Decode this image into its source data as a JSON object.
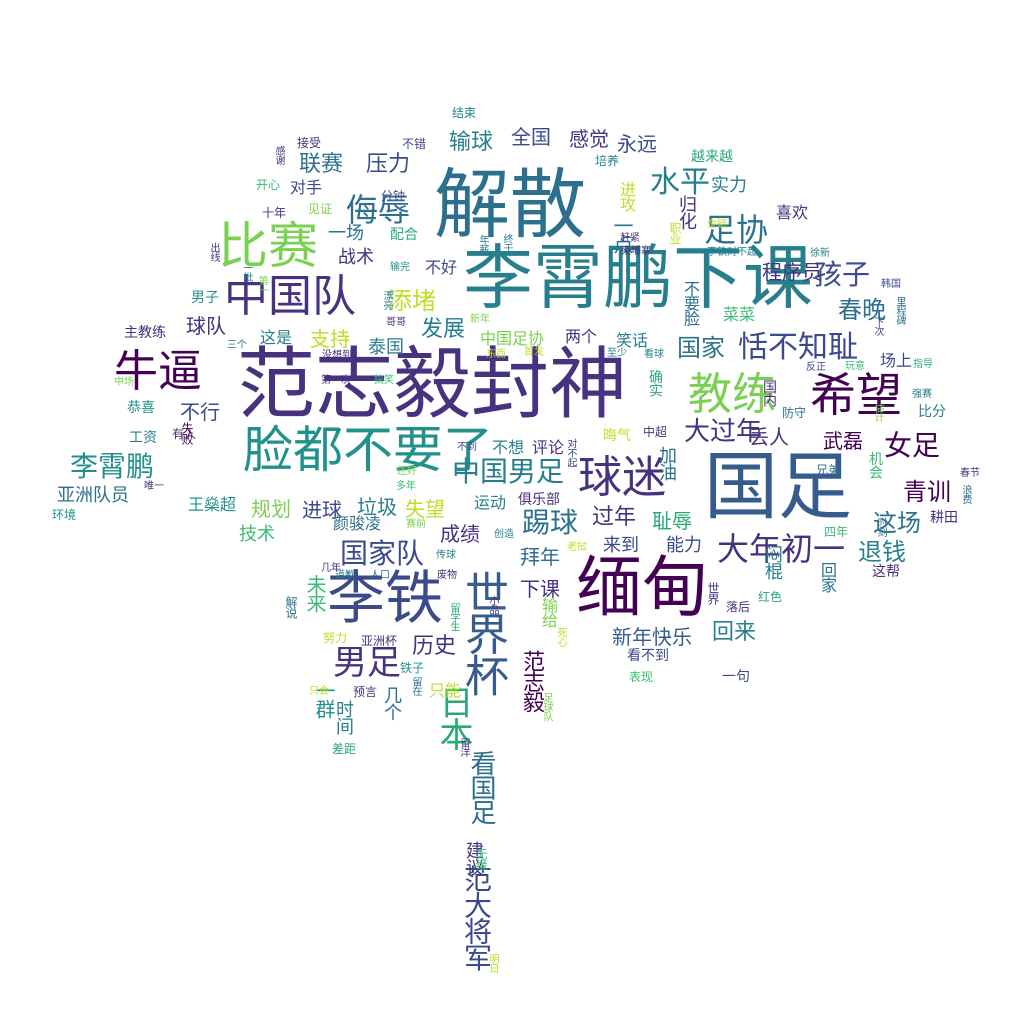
{
  "palette": {
    "indigo": "#46327e",
    "navy": "#3b4a8a",
    "blue": "#365c8d",
    "steel": "#2d708e",
    "teal": "#277f8e",
    "sea": "#21918c",
    "green": "#2aa876",
    "jade": "#3bbb75",
    "lime": "#7ad151",
    "yellow": "#bddf26",
    "purple": "#440154"
  },
  "words": [
    {
      "text": "范志毅封神"
    },
    {
      "text": "李霄鹏下课"
    },
    {
      "text": "解散"
    },
    {
      "text": "国足"
    },
    {
      "text": "脸都不要了"
    },
    {
      "text": "缅甸"
    },
    {
      "text": "李铁"
    },
    {
      "text": "比赛"
    },
    {
      "text": "中国队"
    },
    {
      "text": "牛逼"
    },
    {
      "text": "希望"
    },
    {
      "text": "球迷"
    },
    {
      "text": "教练"
    },
    {
      "text": "世界杯"
    },
    {
      "text": "足协"
    },
    {
      "text": "侮辱"
    },
    {
      "text": "男足"
    },
    {
      "text": "大年初一"
    },
    {
      "text": "日本"
    },
    {
      "text": "恬不知耻"
    },
    {
      "text": "水平"
    },
    {
      "text": "孩子"
    },
    {
      "text": "春晚"
    },
    {
      "text": "女足"
    },
    {
      "text": "李霄鹏"
    },
    {
      "text": "中国男足"
    },
    {
      "text": "国家队"
    },
    {
      "text": "踢球"
    },
    {
      "text": "大过年"
    },
    {
      "text": "青训"
    },
    {
      "text": "这场"
    },
    {
      "text": "退钱"
    },
    {
      "text": "联赛"
    },
    {
      "text": "压力"
    },
    {
      "text": "输球"
    },
    {
      "text": "全国"
    },
    {
      "text": "感觉"
    },
    {
      "text": "永远"
    },
    {
      "text": "实力"
    },
    {
      "text": "添堵"
    },
    {
      "text": "支持"
    },
    {
      "text": "发展"
    },
    {
      "text": "国家"
    },
    {
      "text": "球队"
    },
    {
      "text": "不行"
    },
    {
      "text": "丢人"
    },
    {
      "text": "武磊"
    },
    {
      "text": "过年"
    },
    {
      "text": "耻辱"
    },
    {
      "text": "新年快乐"
    },
    {
      "text": "回来"
    },
    {
      "text": "历史"
    },
    {
      "text": "范大将军"
    },
    {
      "text": "看国足"
    },
    {
      "text": "范志毅"
    },
    {
      "text": "下课"
    },
    {
      "text": "规划"
    },
    {
      "text": "进球"
    },
    {
      "text": "垃圾"
    },
    {
      "text": "失望"
    },
    {
      "text": "成绩"
    },
    {
      "text": "拜年"
    },
    {
      "text": "来到"
    },
    {
      "text": "能力"
    },
    {
      "text": "亚洲队员"
    },
    {
      "text": "一点"
    },
    {
      "text": "归化"
    },
    {
      "text": "进攻"
    },
    {
      "text": "程序员"
    },
    {
      "text": "喜欢"
    },
    {
      "text": "越来越"
    },
    {
      "text": "战术"
    },
    {
      "text": "一场"
    },
    {
      "text": "不好"
    },
    {
      "text": "配合"
    },
    {
      "text": "对手"
    },
    {
      "text": "泰国"
    },
    {
      "text": "这是"
    },
    {
      "text": "两个"
    },
    {
      "text": "笑话"
    },
    {
      "text": "菜菜"
    },
    {
      "text": "不要脸"
    },
    {
      "text": "中国足协"
    },
    {
      "text": "场上"
    },
    {
      "text": "比分"
    },
    {
      "text": "闷棍"
    },
    {
      "text": "回家"
    },
    {
      "text": "这帮"
    },
    {
      "text": "耕田"
    },
    {
      "text": "运动"
    },
    {
      "text": "王燊超"
    },
    {
      "text": "技术"
    },
    {
      "text": "颜骏凌"
    },
    {
      "text": "未来"
    },
    {
      "text": "一群"
    },
    {
      "text": "几个"
    },
    {
      "text": "只能"
    },
    {
      "text": "输给"
    },
    {
      "text": "一句"
    },
    {
      "text": "看不到"
    },
    {
      "text": "表现"
    },
    {
      "text": "建议"
    },
    {
      "text": "无缘"
    },
    {
      "text": "不想"
    },
    {
      "text": "评论"
    },
    {
      "text": "俱乐部"
    },
    {
      "text": "加油"
    },
    {
      "text": "确实"
    },
    {
      "text": "国内"
    },
    {
      "text": "防守"
    },
    {
      "text": "晦气"
    },
    {
      "text": "中超"
    },
    {
      "text": "男子"
    },
    {
      "text": "主教练"
    },
    {
      "text": "恭喜"
    },
    {
      "text": "工资"
    },
    {
      "text": "有人"
    },
    {
      "text": "失败"
    },
    {
      "text": "环境"
    },
    {
      "text": "唯一"
    },
    {
      "text": "机会"
    },
    {
      "text": "兄弟"
    },
    {
      "text": "四年"
    },
    {
      "text": "红色"
    },
    {
      "text": "落后"
    },
    {
      "text": "世界"
    },
    {
      "text": "时间"
    },
    {
      "text": "差距"
    },
    {
      "text": "努力"
    },
    {
      "text": "亚洲杯"
    },
    {
      "text": "解说"
    },
    {
      "text": "预言"
    },
    {
      "text": "铁子"
    },
    {
      "text": "结束"
    },
    {
      "text": "接受"
    },
    {
      "text": "不错"
    },
    {
      "text": "培养"
    },
    {
      "text": "开心"
    },
    {
      "text": "感谢"
    },
    {
      "text": "十年"
    },
    {
      "text": "见证"
    },
    {
      "text": "分钟"
    },
    {
      "text": "出线"
    },
    {
      "text": "一批"
    },
    {
      "text": "第一"
    },
    {
      "text": "漂亮"
    },
    {
      "text": "哥哥"
    },
    {
      "text": "输完"
    },
    {
      "text": "赶紧"
    },
    {
      "text": "职业"
    },
    {
      "text": "李铁对不起"
    },
    {
      "text": "徐新"
    },
    {
      "text": "韩国"
    },
    {
      "text": "里程碑"
    },
    {
      "text": "下次"
    },
    {
      "text": "指导"
    },
    {
      "text": "强赛"
    },
    {
      "text": "玩意"
    },
    {
      "text": "反正"
    },
    {
      "text": "看球"
    },
    {
      "text": "至少"
    },
    {
      "text": "首发"
    },
    {
      "text": "东西"
    },
    {
      "text": "第一次"
    },
    {
      "text": "搞笑"
    },
    {
      "text": "没想到"
    },
    {
      "text": "三个"
    },
    {
      "text": "中场"
    },
    {
      "text": "不到"
    },
    {
      "text": "还好"
    },
    {
      "text": "春节"
    },
    {
      "text": "浪费"
    },
    {
      "text": "多年"
    },
    {
      "text": "赛前"
    },
    {
      "text": "创造"
    },
    {
      "text": "老挝"
    },
    {
      "text": "传球"
    },
    {
      "text": "道歉"
    },
    {
      "text": "人口"
    },
    {
      "text": "废物"
    },
    {
      "text": "几年"
    },
    {
      "text": "小品"
    },
    {
      "text": "留学生"
    },
    {
      "text": "留在"
    },
    {
      "text": "只会"
    },
    {
      "text": "留洋"
    },
    {
      "text": "足球队"
    },
    {
      "text": "明日"
    },
    {
      "text": "死心"
    },
    {
      "text": "对不起"
    },
    {
      "text": "新年"
    },
    {
      "text": "年薪"
    },
    {
      "text": "终于"
    },
    {
      "text": "金链"
    },
    {
      "text": "柬埔寨"
    },
    {
      "text": "时刻"
    },
    {
      "text": "估计"
    }
  ]
}
